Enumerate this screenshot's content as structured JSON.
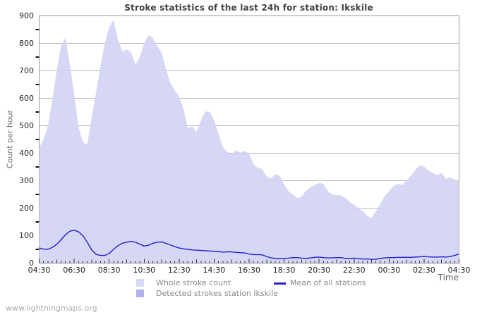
{
  "title": "Stroke statistics of the last 24h for station: Ikskile",
  "axis": {
    "ylabel": "Count per hour",
    "xlabel": "Time"
  },
  "footer": "www.lightningmaps.org",
  "legend": {
    "whole_label": "Whole stroke count",
    "detected_label": "Detected strokes station Ikskile",
    "mean_label": "Mean of all stations"
  },
  "colors": {
    "whole_swatch": "#dadaf8",
    "detected_swatch": "#b1b1ec",
    "mean_line": "#2222cc",
    "area_fill": "rgba(210,210,244,0.92)",
    "grid": "#b6b6b6",
    "frame": "#999999",
    "tick": "#333333"
  },
  "chart_data": {
    "type": "area",
    "title": "Stroke statistics of the last 24h for station: Ikskile",
    "xlabel": "Time",
    "ylabel": "Count per hour",
    "ylim": [
      0,
      900
    ],
    "y_tick_interval": 100,
    "grid": "horizontal-only",
    "legend_position": "bottom",
    "x_tick_labels": [
      "04:30",
      "06:30",
      "08:30",
      "10:30",
      "12:30",
      "14:30",
      "16:30",
      "18:30",
      "20:30",
      "22:30",
      "00:30",
      "02:30",
      "04:30"
    ],
    "x_start_time": "04:30",
    "sample_interval_minutes": 15,
    "series": [
      {
        "name": "Whole stroke count",
        "style": "area",
        "values": [
          420,
          450,
          500,
          590,
          700,
          790,
          820,
          725,
          615,
          495,
          440,
          432,
          530,
          620,
          715,
          800,
          860,
          885,
          815,
          770,
          778,
          768,
          722,
          750,
          800,
          830,
          820,
          790,
          766,
          705,
          655,
          628,
          608,
          560,
          490,
          497,
          478,
          520,
          552,
          550,
          520,
          472,
          422,
          405,
          398,
          410,
          403,
          408,
          398,
          360,
          347,
          342,
          315,
          308,
          324,
          318,
          286,
          262,
          250,
          237,
          242,
          263,
          276,
          283,
          292,
          288,
          262,
          250,
          247,
          246,
          238,
          222,
          212,
          200,
          190,
          172,
          164,
          188,
          215,
          244,
          262,
          280,
          288,
          284,
          301,
          319,
          339,
          356,
          352,
          336,
          328,
          320,
          328,
          307,
          312,
          304,
          300
        ]
      },
      {
        "name": "Mean of all stations",
        "style": "line",
        "values": [
          55,
          51,
          50,
          57,
          68,
          85,
          103,
          116,
          120,
          114,
          100,
          76,
          48,
          32,
          28,
          28,
          35,
          50,
          63,
          72,
          76,
          79,
          76,
          69,
          62,
          65,
          72,
          76,
          77,
          72,
          66,
          60,
          55,
          52,
          50,
          48,
          47,
          46,
          45,
          44,
          43,
          42,
          40,
          41,
          41,
          39,
          38,
          37,
          33,
          31,
          31,
          30,
          24,
          19,
          17,
          16,
          16,
          18,
          20,
          20,
          18,
          17,
          19,
          21,
          22,
          20,
          19,
          19,
          20,
          20,
          17,
          17,
          18,
          16,
          15,
          15,
          14,
          14,
          17,
          19,
          20,
          20,
          21,
          21,
          21,
          21,
          22,
          23,
          24,
          23,
          22,
          22,
          23,
          22,
          24,
          28,
          33
        ]
      }
    ],
    "notes": "Detected strokes station Ikskile area visually overlaps the whole stroke count area"
  }
}
